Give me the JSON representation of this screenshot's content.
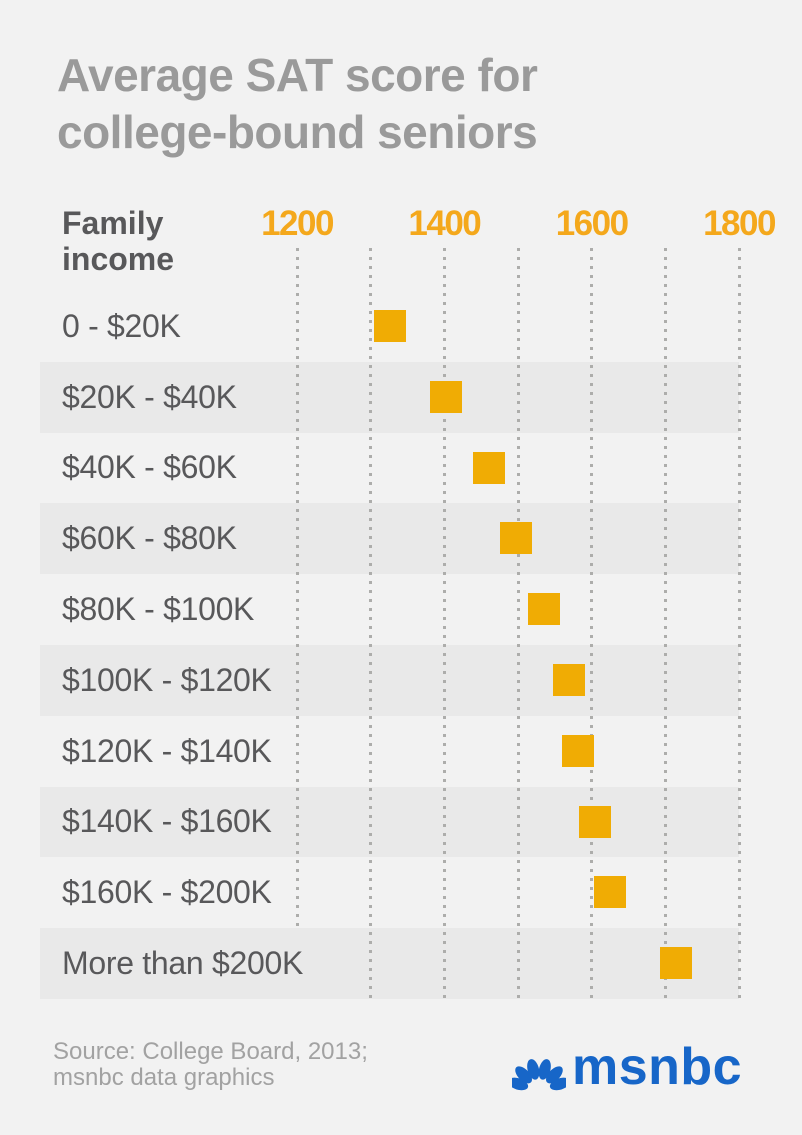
{
  "page": {
    "background": "#f2f2f2"
  },
  "chart_data": {
    "type": "scatter",
    "title": "Average SAT score for college-bound seniors",
    "ylabel": "Family income",
    "categories": [
      "0 - $20K",
      "$20K - $40K",
      "$40K - $60K",
      "$60K - $80K",
      "$80K - $100K",
      "$100K - $120K",
      "$120K - $140K",
      "$140K - $160K",
      "$160K - $200K",
      "More than $200K"
    ],
    "values": [
      1326,
      1402,
      1461,
      1497,
      1535,
      1569,
      1581,
      1604,
      1625,
      1714
    ],
    "x_axis": {
      "min": 1200,
      "max": 1800,
      "gridline_step": 100,
      "labeled_ticks": [
        "1200",
        "1400",
        "1600",
        "1800"
      ]
    },
    "marker": "square",
    "legend": "none",
    "grid": "dotted-vertical",
    "colors": {
      "marker": "#f0ac04",
      "axis_labels": "#f4a81c",
      "band": "#e9e9e9",
      "background": "#f2f2f2",
      "title": "#9a9a9a",
      "labels": "#58585a",
      "gridline": "#adadab"
    }
  },
  "footer": {
    "source_line1": "Source: College Board, 2013;",
    "source_line2": "msnbc data graphics",
    "logo_text": "msnbc",
    "logo_color": "#1766c8"
  }
}
